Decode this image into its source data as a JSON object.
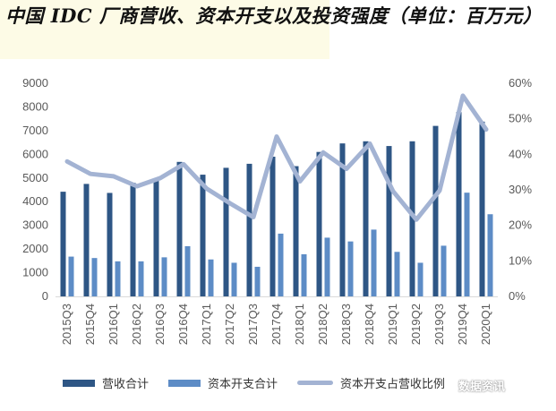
{
  "title": "中国 IDC 厂商营收、资本开支以及投资强度（单位：百万元）",
  "watermark": "数据资讯",
  "colors": {
    "revenue": "#2e5685",
    "capex": "#5d8cc6",
    "intensity": "#a3b3d3",
    "axis_text": "#595959",
    "gridline": "#d9d9d9"
  },
  "legend": {
    "revenue": "营收合计",
    "capex": "资本开支合计",
    "intensity": "资本开支占营收比例"
  },
  "chart_data": {
    "type": "bar",
    "categories": [
      "2015Q3",
      "2015Q4",
      "2016Q1",
      "2016Q2",
      "2016Q3",
      "2016Q4",
      "2017Q1",
      "2017Q2",
      "2017Q3",
      "2017Q4",
      "2018Q1",
      "2018Q2",
      "2018Q3",
      "2018Q4",
      "2019Q1",
      "2019Q2",
      "2019Q3",
      "2019Q4",
      "2020Q1"
    ],
    "series": [
      {
        "name": "营收合计",
        "type": "bar",
        "axis": "left",
        "values": [
          4420,
          4750,
          4370,
          4800,
          4970,
          5680,
          5140,
          5430,
          5600,
          5900,
          5500,
          6100,
          6460,
          6550,
          6350,
          6550,
          7200,
          7780,
          7380
        ]
      },
      {
        "name": "资本开支合计",
        "type": "bar",
        "axis": "left",
        "values": [
          1680,
          1620,
          1480,
          1480,
          1650,
          2120,
          1560,
          1420,
          1250,
          2650,
          1780,
          2480,
          2320,
          2820,
          1880,
          1420,
          2140,
          4380,
          3470
        ]
      },
      {
        "name": "资本开支占营收比例",
        "type": "line",
        "axis": "right",
        "values": [
          0.38,
          0.345,
          0.338,
          0.31,
          0.333,
          0.372,
          0.303,
          0.262,
          0.223,
          0.45,
          0.324,
          0.405,
          0.359,
          0.43,
          0.296,
          0.216,
          0.298,
          0.565,
          0.47
        ]
      }
    ],
    "ylim": [
      0,
      9000
    ],
    "yticks": [
      "9000",
      "8000",
      "7000",
      "6000",
      "5000",
      "4000",
      "3000",
      "2000",
      "1000",
      "0"
    ],
    "y2lim": [
      0,
      0.6
    ],
    "y2ticks": [
      "60%",
      "50%",
      "40%",
      "30%",
      "20%",
      "10%",
      "0%"
    ],
    "grid": false,
    "legend_position": "bottom"
  }
}
